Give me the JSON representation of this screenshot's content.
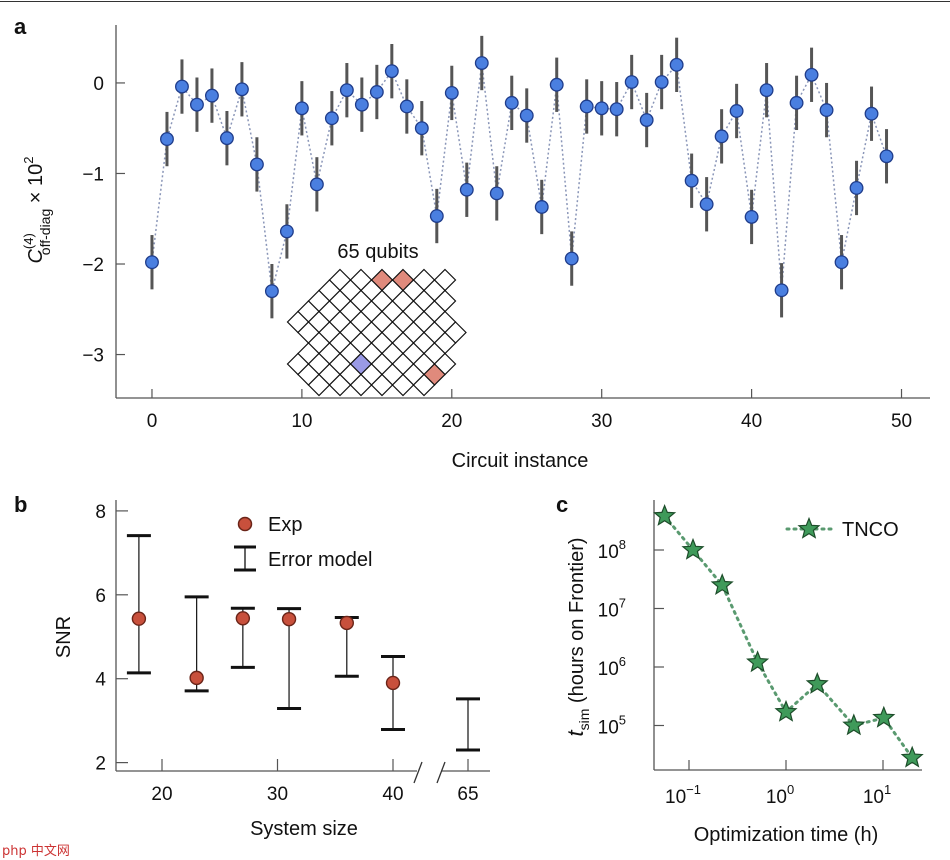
{
  "panels": {
    "a": "a",
    "b": "b",
    "c": "c"
  },
  "watermark": "php 中文网",
  "chart_data": [
    {
      "panel": "a",
      "type": "scatter",
      "xlabel": "Circuit instance",
      "ylabel": {
        "symbol": "C",
        "sup": "(4)",
        "sub": "off-diag",
        "suffix": " × 10",
        "suffix_sup": "2"
      },
      "xlim": [
        -2.4,
        51.9
      ],
      "ylim": [
        -3.48,
        0.64
      ],
      "xticks": [
        0,
        10,
        20,
        30,
        40,
        50
      ],
      "xtick_labels": [
        "0",
        "10",
        "20",
        "30",
        "40",
        "50"
      ],
      "yticks": [
        0,
        -1,
        -2,
        -3
      ],
      "ytick_labels": [
        "0",
        "−1",
        "−2",
        "−3"
      ],
      "x": [
        0,
        1,
        2,
        3,
        4,
        5,
        6,
        7,
        8,
        9,
        10,
        11,
        12,
        13,
        14,
        15,
        16,
        17,
        18,
        19,
        20,
        21,
        22,
        23,
        24,
        25,
        26,
        27,
        28,
        29,
        30,
        31,
        32,
        33,
        34,
        35,
        36,
        37,
        38,
        39,
        40,
        41,
        42,
        43,
        44,
        45,
        46,
        47,
        48,
        49
      ],
      "y": [
        -1.98,
        -0.62,
        -0.04,
        -0.24,
        -0.14,
        -0.61,
        -0.07,
        -0.9,
        -2.3,
        -1.64,
        -0.28,
        -1.12,
        -0.39,
        -0.08,
        -0.24,
        -0.1,
        0.13,
        -0.26,
        -0.5,
        -1.47,
        -0.11,
        -1.18,
        0.22,
        -1.22,
        -0.22,
        -0.36,
        -1.37,
        -0.02,
        -1.94,
        -0.26,
        -0.28,
        -0.29,
        0.01,
        -0.41,
        0.01,
        0.2,
        -1.08,
        -1.34,
        -0.59,
        -0.31,
        -1.48,
        -0.08,
        -2.29,
        -0.22,
        0.09,
        -0.3,
        -1.98,
        -1.16,
        -0.34,
        -0.81
      ],
      "yerr": 0.3,
      "color": "#4a7fe0",
      "connector": "dotted",
      "inset": {
        "label": "65 qubits",
        "highlight_colors": {
          "red": "#e08a7c",
          "blue": "#9a9ae6"
        }
      }
    },
    {
      "panel": "b",
      "type": "scatter",
      "xlabel": "System size",
      "ylabel": "SNR",
      "ylim": [
        1.8,
        8.26
      ],
      "xticks": [
        20,
        30,
        40,
        65
      ],
      "xtick_labels": [
        "20",
        "30",
        "40",
        "65"
      ],
      "x_axis_break": "between 40 and 65",
      "yticks": [
        8,
        6,
        4,
        2
      ],
      "ytick_labels": [
        "8",
        "6",
        "4",
        "2"
      ],
      "legend": {
        "placement": "top",
        "entries": [
          "Exp",
          "Error model"
        ]
      },
      "series": [
        {
          "name": "Exp",
          "x": [
            18,
            23,
            27,
            31,
            36,
            40
          ],
          "y": [
            5.43,
            4.02,
            5.44,
            5.42,
            5.33,
            3.9
          ],
          "color": "#c8503c"
        },
        {
          "name": "Error model",
          "x": [
            18,
            23,
            27,
            31,
            36,
            40,
            65
          ],
          "low": [
            4.14,
            3.71,
            4.27,
            3.29,
            4.06,
            2.79,
            2.3
          ],
          "high": [
            7.41,
            5.95,
            5.68,
            5.67,
            5.46,
            4.53,
            3.52
          ],
          "color": "#111111"
        }
      ]
    },
    {
      "panel": "c",
      "type": "line",
      "xlabel": "Optimization time (h)",
      "ylabel": {
        "symbol": "t",
        "sub": "sim",
        "suffix": " (hours on Frontier)"
      },
      "xscale": "log",
      "yscale": "log",
      "xlim": [
        0.04,
        30
      ],
      "ylim": [
        15000,
        700000000
      ],
      "xticks": [
        0.1,
        1,
        10
      ],
      "xtick_labels": [
        {
          "base": "10",
          "exp": "−1"
        },
        {
          "base": "10",
          "exp": "0"
        },
        {
          "base": "10",
          "exp": "1"
        }
      ],
      "yticks": [
        100000000,
        10000000,
        1000000,
        100000
      ],
      "ytick_labels": [
        {
          "base": "10",
          "exp": "8"
        },
        {
          "base": "10",
          "exp": "7"
        },
        {
          "base": "10",
          "exp": "6"
        },
        {
          "base": "10",
          "exp": "5"
        }
      ],
      "legend": {
        "placement": "top-right",
        "entries": [
          "TNCO"
        ]
      },
      "series": [
        {
          "name": "TNCO",
          "x": [
            0.056,
            0.11,
            0.22,
            0.51,
            1.0,
            2.1,
            5.0,
            10.2,
            20
          ],
          "y": [
            380000000,
            100000000,
            25000000,
            1200000,
            170000,
            510000,
            100000,
            135000,
            28000
          ],
          "color": "#3f9a5a",
          "marker": "star",
          "connector": "dotted"
        }
      ]
    }
  ]
}
